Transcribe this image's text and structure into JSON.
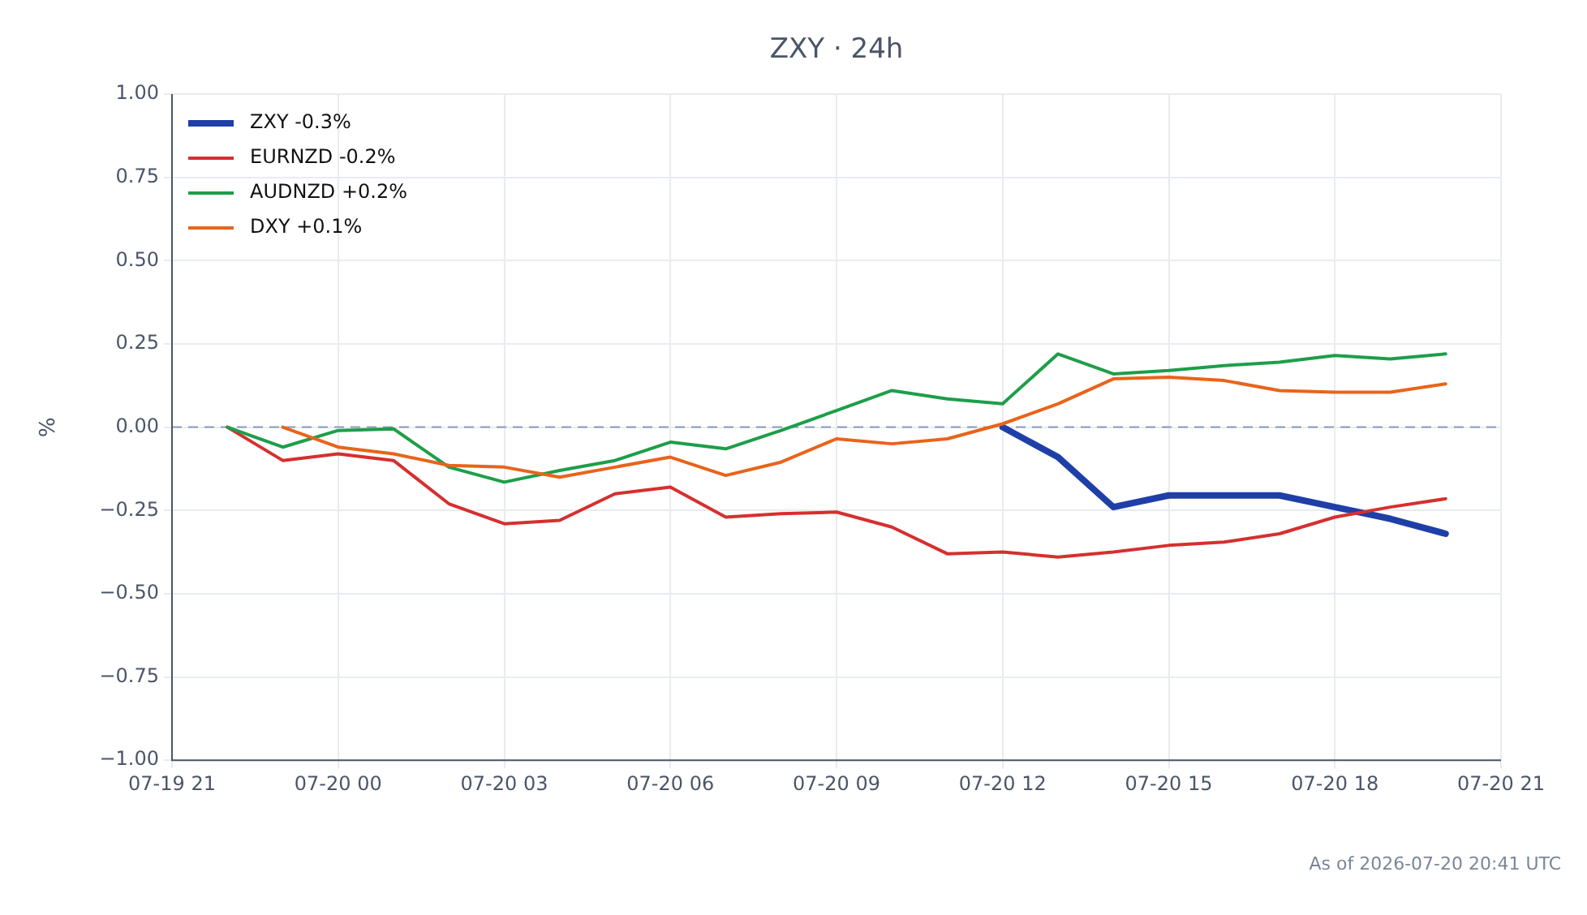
{
  "chart_data": {
    "type": "line",
    "title": "ZXY · 24h",
    "ylabel": "%",
    "x": [
      "2026-07-19T22:00",
      "2026-07-19T23:00",
      "2026-07-20T00:00",
      "2026-07-20T01:00",
      "2026-07-20T02:00",
      "2026-07-20T03:00",
      "2026-07-20T04:00",
      "2026-07-20T05:00",
      "2026-07-20T06:00",
      "2026-07-20T07:00",
      "2026-07-20T08:00",
      "2026-07-20T09:00",
      "2026-07-20T10:00",
      "2026-07-20T11:00",
      "2026-07-20T12:00",
      "2026-07-20T13:00",
      "2026-07-20T14:00",
      "2026-07-20T15:00",
      "2026-07-20T16:00",
      "2026-07-20T17:00",
      "2026-07-20T18:00",
      "2026-07-20T19:00",
      "2026-07-20T20:00"
    ],
    "series": [
      {
        "name": "ZXY -0.3%",
        "color": "#1f3fa8",
        "values": [
          null,
          null,
          null,
          null,
          null,
          null,
          null,
          null,
          null,
          null,
          null,
          null,
          null,
          null,
          0,
          -0.09,
          -0.24,
          -0.205,
          -0.205,
          -0.205,
          -0.24,
          -0.275,
          -0.32
        ]
      },
      {
        "name": "EURNZD -0.2%",
        "color": "#d62f2f",
        "values": [
          0,
          -0.1,
          -0.08,
          -0.1,
          -0.23,
          -0.29,
          -0.28,
          -0.2,
          -0.18,
          -0.27,
          -0.26,
          -0.255,
          -0.3,
          -0.38,
          -0.375,
          -0.39,
          -0.375,
          -0.355,
          -0.345,
          -0.32,
          -0.27,
          -0.24,
          -0.215
        ]
      },
      {
        "name": "AUDNZD +0.2%",
        "color": "#1e9e4a",
        "values": [
          0,
          -0.06,
          -0.01,
          -0.005,
          -0.12,
          -0.165,
          -0.13,
          -0.1,
          -0.045,
          -0.065,
          -0.01,
          0.05,
          0.11,
          0.085,
          0.07,
          0.22,
          0.16,
          0.17,
          0.185,
          0.195,
          0.215,
          0.205,
          0.22
        ]
      },
      {
        "name": "DXY +0.1%",
        "color": "#e8641b",
        "values": [
          null,
          0,
          -0.06,
          -0.08,
          -0.115,
          -0.12,
          -0.15,
          -0.12,
          -0.09,
          -0.145,
          -0.105,
          -0.035,
          -0.05,
          -0.035,
          0.01,
          0.07,
          0.145,
          0.15,
          0.14,
          0.11,
          0.105,
          0.105,
          0.13
        ]
      }
    ],
    "xlim": [
      "2026-07-19T21:00",
      "2026-07-20T21:00"
    ],
    "xticks": [
      {
        "value": "2026-07-19T21:00",
        "label": "07-19 21"
      },
      {
        "value": "2026-07-20T00:00",
        "label": "07-20 00"
      },
      {
        "value": "2026-07-20T03:00",
        "label": "07-20 03"
      },
      {
        "value": "2026-07-20T06:00",
        "label": "07-20 06"
      },
      {
        "value": "2026-07-20T09:00",
        "label": "07-20 09"
      },
      {
        "value": "2026-07-20T12:00",
        "label": "07-20 12"
      },
      {
        "value": "2026-07-20T15:00",
        "label": "07-20 15"
      },
      {
        "value": "2026-07-20T18:00",
        "label": "07-20 18"
      },
      {
        "value": "2026-07-20T21:00",
        "label": "07-20 21"
      }
    ],
    "ylim": [
      -1,
      1
    ],
    "yticks": [
      {
        "value": -1,
        "label": "−1.00"
      },
      {
        "value": -0.75,
        "label": "−0.75"
      },
      {
        "value": -0.5,
        "label": "−0.50"
      },
      {
        "value": -0.25,
        "label": "−0.25"
      },
      {
        "value": 0,
        "label": "0.00"
      },
      {
        "value": 0.25,
        "label": "0.25"
      },
      {
        "value": 0.5,
        "label": "0.50"
      },
      {
        "value": 0.75,
        "label": "0.75"
      },
      {
        "value": 1,
        "label": "1.00"
      }
    ],
    "ref_lines": [
      {
        "axis": "y",
        "value": 0,
        "color": "#8a9ab8",
        "line_style": "dashed"
      }
    ],
    "grid": true,
    "legend": "top left",
    "marker": "none",
    "line_style": "solid",
    "annotations": [
      "As of 2026-07-20 20:41 UTC"
    ]
  }
}
